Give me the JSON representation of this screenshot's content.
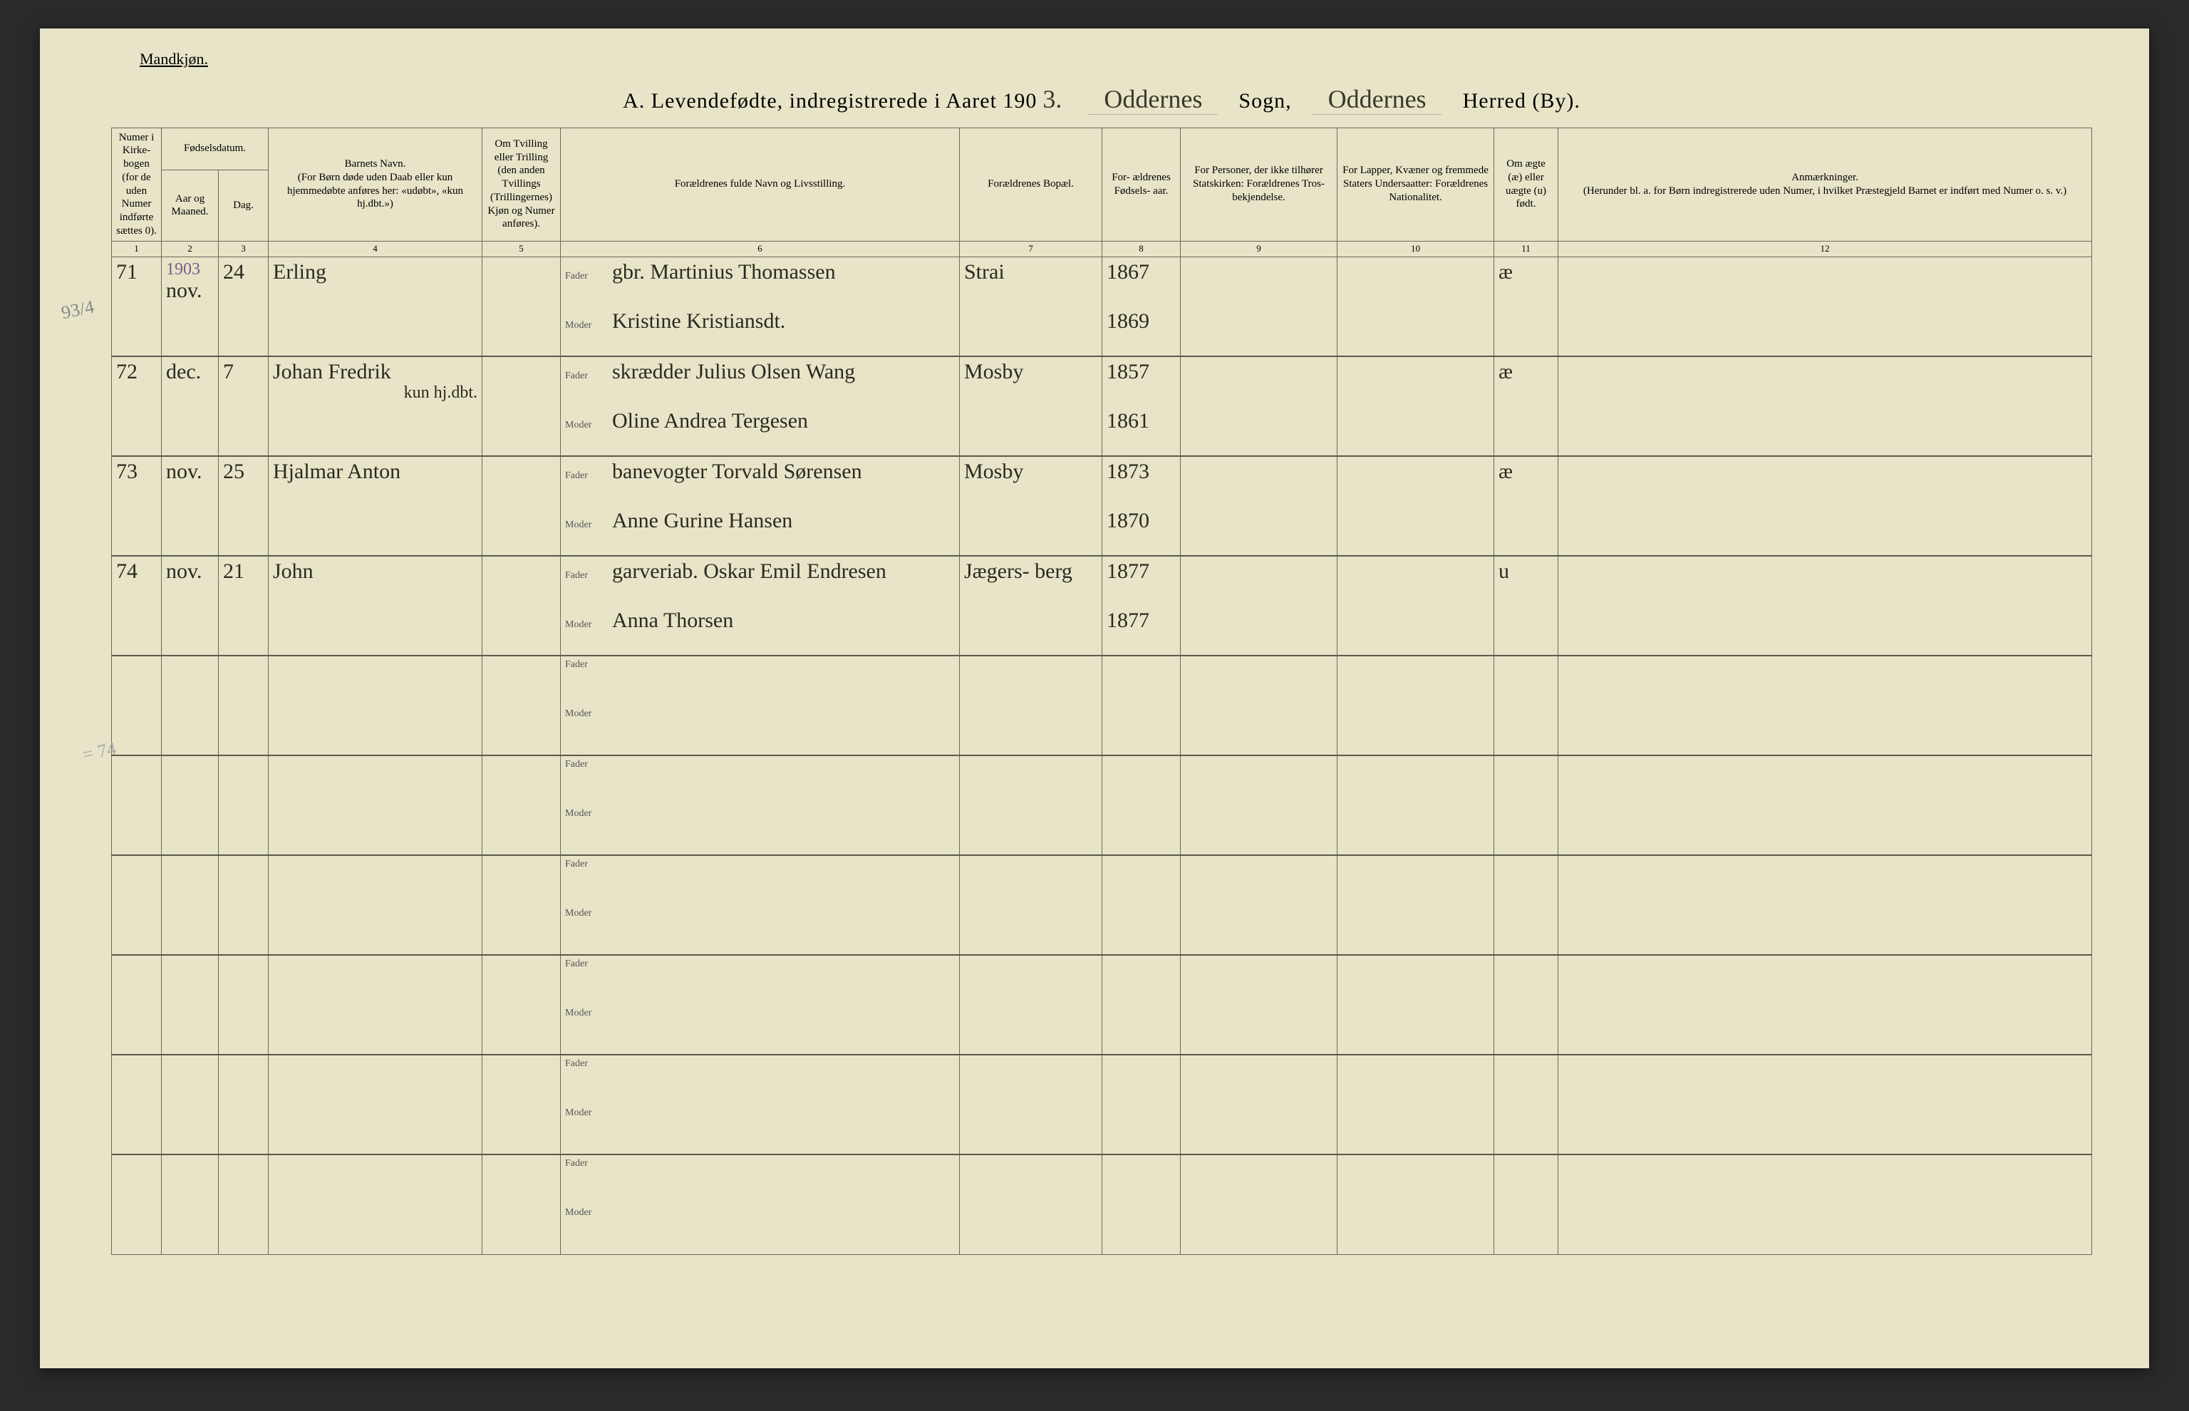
{
  "page": {
    "gender_label": "Mandkjøn.",
    "title_prefix": "A.  Levendefødte, indregistrerede i Aaret 190",
    "year_suffix": "3.",
    "sogn_word": "Sogn,",
    "herred_word": "Herred (By).",
    "sogn_value": "Oddernes",
    "herred_value": "Oddernes"
  },
  "margin": {
    "left1": "93/4",
    "left2": "= 74"
  },
  "headers": {
    "c1": "Numer i Kirke- bogen (for de uden Numer indførte sættes 0).",
    "c2_top": "Fødselsdatum.",
    "c2a": "Aar og Maaned.",
    "c2b": "Dag.",
    "c4": "Barnets Navn.\n(For Børn døde uden Daab eller kun hjemmedøbte anføres her: «udøbt», «kun hj.dbt.»)",
    "c5": "Om Tvilling eller Trilling (den anden Tvillings (Trillingernes) Kjøn og Numer anføres).",
    "c6": "Forældrenes fulde Navn og Livsstilling.",
    "c7": "Forældrenes Bopæl.",
    "c8": "For- ældrenes Fødsels- aar.",
    "c9": "For Personer, der ikke tilhører Statskirken: Forældrenes Tros- bekjendelse.",
    "c10": "For Lapper, Kvæner og fremmede Staters Undersaatter: Forældrenes Nationalitet.",
    "c11": "Om ægte (æ) eller uægte (u) født.",
    "c12": "Anmærkninger.\n(Herunder bl. a. for Børn indregistrerede uden Numer, i hvilket Præstegjeld Barnet er indført med Numer o. s. v.)",
    "nums": [
      "1",
      "2",
      "3",
      "4",
      "5",
      "6",
      "7",
      "8",
      "9",
      "10",
      "11",
      "12"
    ],
    "fader": "Fader",
    "moder": "Moder"
  },
  "rows": [
    {
      "num": "71",
      "month_pre": "1903",
      "month": "nov.",
      "day": "24",
      "child": "Erling",
      "father": "gbr. Martinius Thomassen",
      "mother": "Kristine Kristiansdt.",
      "residence": "Strai",
      "fyear": "1867",
      "myear": "1869",
      "legit": "æ"
    },
    {
      "num": "72",
      "month": "dec.",
      "day": "7",
      "child": "Johan Fredrik",
      "child_note": "kun hj.dbt.",
      "father": "skrædder Julius Olsen Wang",
      "mother": "Oline Andrea Tergesen",
      "residence": "Mosby",
      "fyear": "1857",
      "myear": "1861",
      "legit": "æ"
    },
    {
      "num": "73",
      "month": "nov.",
      "day": "25",
      "child": "Hjalmar Anton",
      "father": "banevogter Torvald Sørensen",
      "mother": "Anne Gurine Hansen",
      "residence": "Mosby",
      "fyear": "1873",
      "myear": "1870",
      "legit": "æ"
    },
    {
      "num": "74",
      "month": "nov.",
      "day": "21",
      "child": "John",
      "father": "garveriab. Oskar Emil Endresen",
      "mother": "Anna Thorsen",
      "residence": "Jægers- berg",
      "fyear": "1877",
      "myear": "1877",
      "legit": "u"
    }
  ],
  "empty_rows": 6,
  "styling": {
    "page_bg": "#e8e4c8",
    "border_color": "#6a6a5a",
    "heavy_border_color": "#5a5a4a",
    "hand_color": "#2a2a20",
    "print_color": "#333",
    "title_fontsize": 30,
    "header_fontsize": 15,
    "hand_fontsize": 30
  }
}
